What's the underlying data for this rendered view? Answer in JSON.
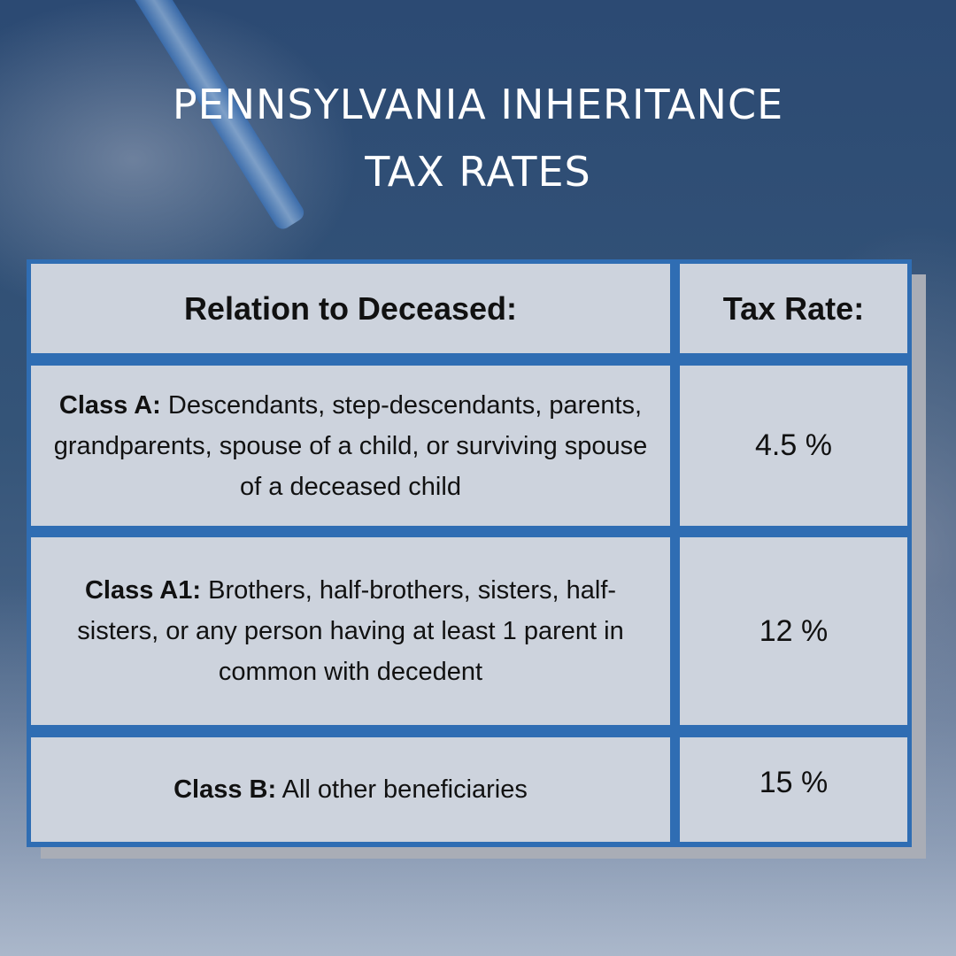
{
  "title": "PENNSYLVANIA INHERITANCE\nTAX RATES",
  "table": {
    "header": {
      "relation": "Relation to Deceased:",
      "rate": "Tax Rate:"
    },
    "rows": [
      {
        "class": "Class A:",
        "description": " Descendants, step-descendants, parents, grandparents, spouse of a child, or surviving spouse of a deceased child",
        "rate": "4.5 %"
      },
      {
        "class": "Class A1:",
        "description": " Brothers, half-brothers, sisters, half-sisters, or any person having at least 1 parent in common with decedent",
        "rate": "12 %"
      },
      {
        "class": "Class B:",
        "description": " All other beneficiaries",
        "rate": "15 %"
      }
    ]
  },
  "colors": {
    "border": "#2f6db3",
    "cell": "#cdd3dd",
    "title": "#ffffff"
  }
}
